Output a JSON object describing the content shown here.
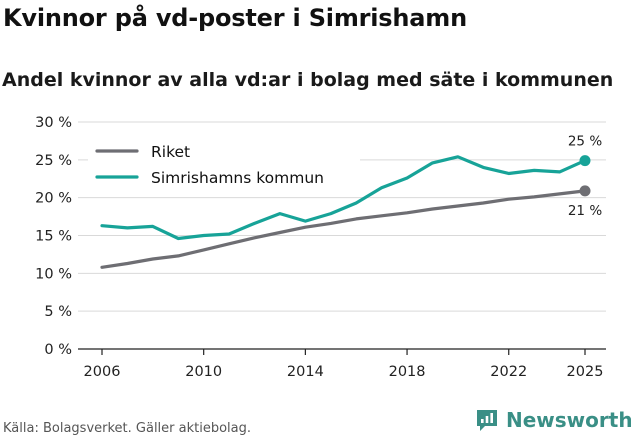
{
  "title": "Kvinnor på vd-poster i Simrishamn",
  "subtitle": "Andel kvinnor av alla vd:ar i bolag med säte i kommunen",
  "source": "Källa: Bolagsverket. Gäller aktiebolag.",
  "brand": "Newsworthy",
  "colors": {
    "riket": "#6e6e73",
    "simrishamn": "#17a398",
    "grid": "#d9d9d9",
    "brand": "#3a8f86"
  },
  "chart_data": {
    "type": "line",
    "title": "Kvinnor på vd-poster i Simrishamn",
    "subtitle": "Andel kvinnor av alla vd:ar i bolag med säte i kommunen",
    "xlabel": "",
    "ylabel": "",
    "x": [
      2006,
      2007,
      2008,
      2009,
      2010,
      2011,
      2012,
      2013,
      2014,
      2015,
      2016,
      2017,
      2018,
      2019,
      2020,
      2021,
      2022,
      2023,
      2024,
      2025
    ],
    "xticks": [
      2006,
      2010,
      2014,
      2018,
      2022,
      2025
    ],
    "xtick_labels": [
      "2006",
      "2010",
      "2014",
      "2018",
      "2022",
      "2025"
    ],
    "xlim": [
      2006,
      2025
    ],
    "ylim": [
      0,
      30
    ],
    "yticks": [
      0,
      5,
      10,
      15,
      20,
      25,
      30
    ],
    "ytick_labels": [
      "0 %",
      "5 %",
      "10 %",
      "15 %",
      "20 %",
      "25 %",
      "30 %"
    ],
    "legend_position": "top-left",
    "series": [
      {
        "name": "Riket",
        "color": "#6e6e73",
        "values": [
          10.8,
          11.3,
          11.9,
          12.3,
          13.1,
          13.9,
          14.7,
          15.4,
          16.1,
          16.6,
          17.2,
          17.6,
          18.0,
          18.5,
          18.9,
          19.3,
          19.8,
          20.1,
          20.5,
          20.9
        ],
        "end_label": "21 %"
      },
      {
        "name": "Simrishamns kommun",
        "color": "#17a398",
        "values": [
          16.3,
          16.0,
          16.2,
          14.6,
          15.0,
          15.2,
          16.6,
          17.9,
          16.9,
          17.9,
          19.3,
          21.3,
          22.6,
          24.6,
          25.4,
          24.0,
          23.2,
          23.6,
          23.4,
          24.9
        ],
        "end_label": "25 %"
      }
    ]
  }
}
